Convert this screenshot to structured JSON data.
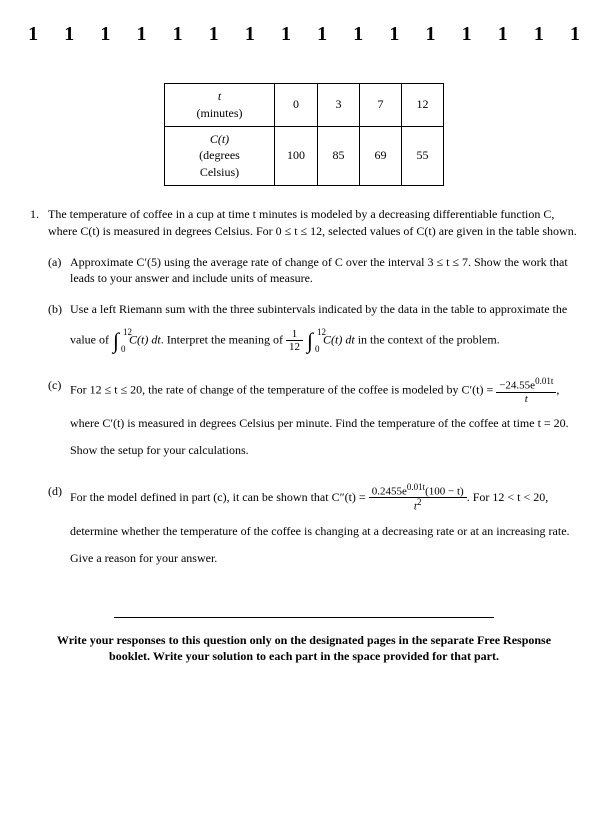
{
  "header": {
    "digit": "1",
    "count": 16
  },
  "table": {
    "row1_label_top": "t",
    "row1_label_bottom": "(minutes)",
    "row1_vals": [
      "0",
      "3",
      "7",
      "12"
    ],
    "row2_label_top": "C(t)",
    "row2_label_bottom": "(degrees Celsius)",
    "row2_vals": [
      "100",
      "85",
      "69",
      "55"
    ]
  },
  "question": {
    "number": "1.",
    "intro": "The temperature of coffee in a cup at time t minutes is modeled by a decreasing differentiable function C, where C(t) is measured in degrees Celsius. For 0 ≤ t ≤ 12, selected values of C(t) are given in the table shown."
  },
  "parts": {
    "a": {
      "label": "(a)",
      "text": "Approximate C′(5) using the average rate of change of C over the interval 3 ≤ t ≤ 7. Show the work that leads to your answer and include units of measure."
    },
    "b": {
      "label": "(b)",
      "p1_pre": "Use a left Riemann sum with the three subintervals indicated by the data in the table to approximate the",
      "p2_pre": "value of ",
      "int_upper": "12",
      "int_lower": "0",
      "integrand1": "C(t) dt",
      "p2_mid": ". Interpret the meaning of ",
      "frac_num": "1",
      "frac_den": "12",
      "integrand2": "C(t) dt",
      "p2_post": " in the context of the problem."
    },
    "c": {
      "label": "(c)",
      "p1_pre": "For 12 ≤ t ≤ 20, the rate of change of the temperature of the coffee is modeled by C′(t) = ",
      "frac_num": "−24.55e",
      "frac_exp": "0.01t",
      "frac_den": "t",
      "p1_post": ",",
      "p2": "where C′(t) is measured in degrees Celsius per minute. Find the temperature of the coffee at time t = 20.",
      "p3": "Show the setup for your calculations."
    },
    "d": {
      "label": "(d)",
      "p1_pre": "For the model defined in part (c), it can be shown that C″(t) = ",
      "frac_num_a": "0.2455e",
      "frac_exp": "0.01t",
      "frac_num_b": "(100 − t)",
      "frac_den": "t",
      "frac_den_exp": "2",
      "p1_post": ". For 12 < t < 20,",
      "p2": "determine whether the temperature of the coffee is changing at a decreasing rate or at an increasing rate.",
      "p3": "Give a reason for your answer."
    }
  },
  "footer": "Write your responses to this question only on the designated pages in the separate Free Response booklet. Write your solution to each part in the space provided for that part."
}
